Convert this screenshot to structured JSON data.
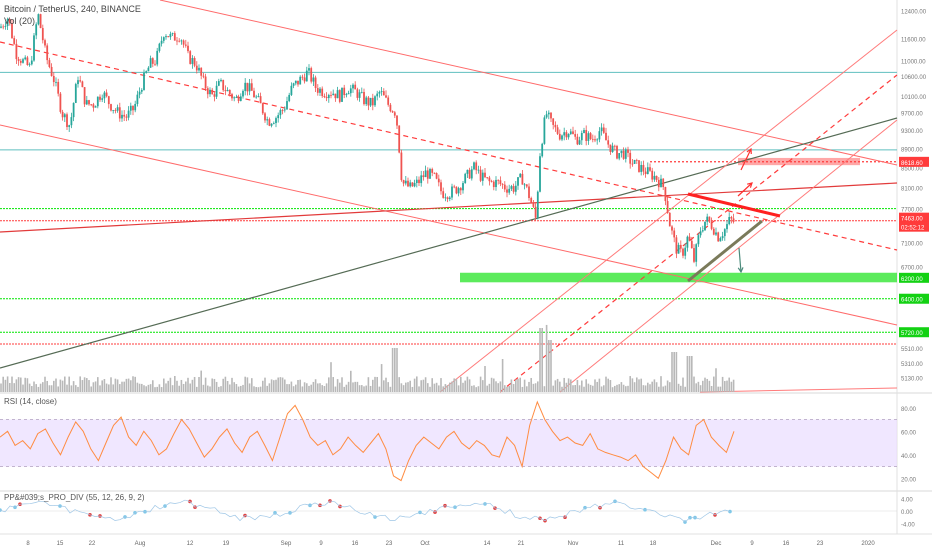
{
  "header": {
    "symbol_line": "Bitcoin / TetherUS, 240, BINANCE",
    "volume_label": "Vol (20)"
  },
  "indicators": {
    "rsi_label": "RSI (14, close)",
    "macd_label": "PP&#039;s_PRO_DIV (55, 12, 26, 9, 2)"
  },
  "colors": {
    "up": "#26a69a",
    "down": "#ef5350",
    "support_green": "#00e600",
    "resistance_red": "#ff3b3b",
    "teal_line": "#5fbfbf",
    "rsi_line": "#ff8c42",
    "rsi_band": "#e9ddff",
    "price_tag_red": "#ff3b3b",
    "price_tag_green": "#13d113"
  },
  "chart_data": [
    {
      "type": "candlestick",
      "title": "Bitcoin / TetherUS, 240, BINANCE",
      "x_ticks": [
        "8",
        "15",
        "22",
        "Aug",
        "12",
        "19",
        "Sep",
        "9",
        "16",
        "23",
        "Oct",
        "14",
        "21",
        "Nov",
        "11",
        "18",
        "Dec",
        "9",
        "16",
        "23",
        "2020"
      ],
      "y_ticks": [
        12400.0,
        11600.0,
        11000.0,
        10600.0,
        10100.0,
        9700.0,
        9300.0,
        8900.0,
        8500.0,
        8100.0,
        7700.0,
        7100.0,
        6700.0,
        6200.0,
        5710.0,
        5510.0,
        5310.0,
        5130.0
      ],
      "ylim": [
        5050,
        12600
      ],
      "y_scale": "log",
      "price_tags": [
        {
          "label": "8618.60",
          "color": "red"
        },
        {
          "label": "7463.00",
          "color": "red"
        },
        {
          "label": "02:52:12",
          "color": "red"
        },
        {
          "label": "6200.00",
          "color": "green"
        },
        {
          "label": "6400.00",
          "color": "green"
        },
        {
          "label": "5720.00",
          "color": "green"
        }
      ],
      "close_path": [
        [
          0,
          11900
        ],
        [
          8,
          12200
        ],
        [
          16,
          11200
        ],
        [
          22,
          11000
        ],
        [
          30,
          10800
        ],
        [
          38,
          12300
        ],
        [
          46,
          11100
        ],
        [
          54,
          10500
        ],
        [
          62,
          9700
        ],
        [
          70,
          9400
        ],
        [
          78,
          10600
        ],
        [
          86,
          9900
        ],
        [
          94,
          9900
        ],
        [
          102,
          10200
        ],
        [
          110,
          9900
        ],
        [
          118,
          9700
        ],
        [
          126,
          9600
        ],
        [
          134,
          9800
        ],
        [
          142,
          10400
        ],
        [
          150,
          10900
        ],
        [
          156,
          11000
        ],
        [
          164,
          11800
        ],
        [
          172,
          11600
        ],
        [
          180,
          11700
        ],
        [
          188,
          11100
        ],
        [
          196,
          10900
        ],
        [
          204,
          10400
        ],
        [
          212,
          10100
        ],
        [
          220,
          10400
        ],
        [
          228,
          10200
        ],
        [
          236,
          10000
        ],
        [
          244,
          10400
        ],
        [
          252,
          10200
        ],
        [
          260,
          9900
        ],
        [
          268,
          9500
        ],
        [
          276,
          9600
        ],
        [
          284,
          9800
        ],
        [
          292,
          10300
        ],
        [
          300,
          10500
        ],
        [
          308,
          10700
        ],
        [
          316,
          10300
        ],
        [
          324,
          10200
        ],
        [
          332,
          10200
        ],
        [
          340,
          10100
        ],
        [
          348,
          10300
        ],
        [
          356,
          10200
        ],
        [
          364,
          10000
        ],
        [
          372,
          9900
        ],
        [
          380,
          10200
        ],
        [
          388,
          9900
        ],
        [
          396,
          9700
        ],
        [
          402,
          8200
        ],
        [
          410,
          8100
        ],
        [
          418,
          8200
        ],
        [
          426,
          8400
        ],
        [
          434,
          8300
        ],
        [
          442,
          8000
        ],
        [
          450,
          8000
        ],
        [
          458,
          8100
        ],
        [
          466,
          8300
        ],
        [
          474,
          8500
        ],
        [
          482,
          8300
        ],
        [
          490,
          8200
        ],
        [
          498,
          8200
        ],
        [
          506,
          8100
        ],
        [
          514,
          8100
        ],
        [
          522,
          8300
        ],
        [
          530,
          7900
        ],
        [
          536,
          7500
        ],
        [
          540,
          8800
        ],
        [
          546,
          9700
        ],
        [
          552,
          9400
        ],
        [
          560,
          9200
        ],
        [
          568,
          9300
        ],
        [
          576,
          9100
        ],
        [
          584,
          9200
        ],
        [
          592,
          9100
        ],
        [
          600,
          9300
        ],
        [
          608,
          9000
        ],
        [
          616,
          8800
        ],
        [
          624,
          8800
        ],
        [
          632,
          8600
        ],
        [
          640,
          8500
        ],
        [
          648,
          8400
        ],
        [
          656,
          8300
        ],
        [
          664,
          8100
        ],
        [
          670,
          7400
        ],
        [
          676,
          7000
        ],
        [
          682,
          6900
        ],
        [
          688,
          7200
        ],
        [
          694,
          6800
        ],
        [
          700,
          7300
        ],
        [
          706,
          7500
        ],
        [
          712,
          7400
        ],
        [
          718,
          7200
        ],
        [
          724,
          7300
        ],
        [
          730,
          7500
        ],
        [
          734,
          7463
        ]
      ],
      "volume_peaks": [
        [
          395,
          0.55
        ],
        [
          541,
          0.8
        ],
        [
          548,
          0.65
        ],
        [
          674,
          0.5
        ],
        [
          690,
          0.45
        ]
      ],
      "annotations": {
        "resistance_zone": [
          8550,
          8700
        ],
        "support_zone": [
          6450,
          6600
        ],
        "horizontal_levels_teal": [
          10690,
          8870
        ],
        "horizontal_levels_green": [
          7700,
          6200,
          5720
        ],
        "horizontal_levels_red": [
          7480,
          5560
        ]
      }
    },
    {
      "type": "line",
      "title": "RSI (14, close)",
      "y_ticks": [
        80.0,
        60.0,
        40.0,
        20.0
      ],
      "ylim": [
        10,
        90
      ],
      "band": [
        30,
        70
      ],
      "series": [
        {
          "values": [
            55,
            60,
            48,
            52,
            45,
            58,
            62,
            50,
            40,
            55,
            68,
            60,
            45,
            35,
            50,
            65,
            72,
            55,
            48,
            60,
            52,
            40,
            45,
            58,
            70,
            62,
            50,
            38,
            45,
            55,
            62,
            50,
            42,
            55,
            60,
            48,
            35,
            55,
            75,
            82,
            70,
            55,
            48,
            52,
            40,
            45,
            55,
            48,
            42,
            50,
            58,
            45,
            22,
            18,
            35,
            48,
            55,
            50,
            45,
            55,
            60,
            50,
            45,
            52,
            48,
            40,
            38,
            55,
            48,
            30,
            65,
            85,
            70,
            60,
            52,
            55,
            50,
            48,
            58,
            45,
            42,
            40,
            38,
            35,
            40,
            30,
            25,
            20,
            35,
            55,
            45,
            40,
            65,
            70,
            55,
            48,
            42,
            60
          ]
        }
      ]
    },
    {
      "type": "scatter",
      "title": "PP&#039;s_PRO_DIV (55, 12, 26, 9, 2)",
      "y_ticks": [
        4.0,
        0.0,
        -4.0
      ],
      "ylim": [
        -6,
        6
      ]
    }
  ]
}
